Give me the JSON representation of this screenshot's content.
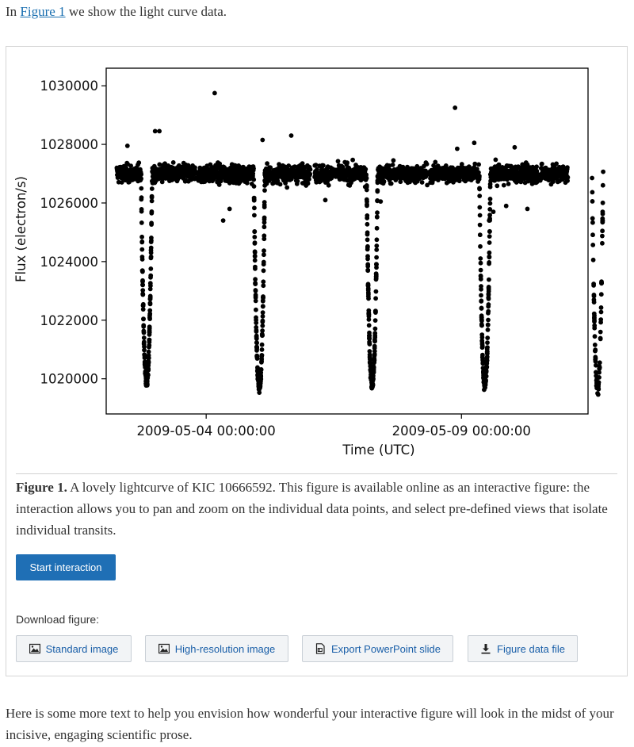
{
  "intro": {
    "prefix": "In",
    "link_text": "Figure 1",
    "suffix": "we show the light curve data."
  },
  "figure": {
    "caption_label": "Figure 1.",
    "caption_text": "A lovely lightcurve of KIC 10666592. This figure is available online as an interactive figure: the interaction allows you to pan and zoom on the individual data points, and select pre-defined views that isolate individual transits.",
    "interaction_button": "Start interaction",
    "download_label": "Download figure:",
    "downloads": [
      {
        "label": "Standard image",
        "icon": "image-icon"
      },
      {
        "label": "High-resolution image",
        "icon": "image-icon"
      },
      {
        "label": "Export PowerPoint slide",
        "icon": "powerpoint-icon"
      },
      {
        "label": "Figure data file",
        "icon": "download-icon"
      }
    ]
  },
  "chart_data": {
    "type": "scatter",
    "title": "",
    "xlabel": "Time (UTC)",
    "ylabel": "Flux (electron/s)",
    "xlim": [
      "2009-05-02 01:00:00",
      "2009-05-11 11:30:00"
    ],
    "ylim": [
      1018800,
      1030600
    ],
    "x_ticks": [
      "2009-05-04 00:00:00",
      "2009-05-09 00:00:00"
    ],
    "y_ticks": [
      1020000,
      1022000,
      1024000,
      1026000,
      1028000,
      1030000
    ],
    "grid": false,
    "marker_color": "#000000",
    "baseline_flux": 1027000,
    "transit_min_flux": 1019700,
    "data_segments": [
      {
        "start": "2009-05-02 06:00:00",
        "end": "2009-05-03 19:00:00"
      },
      {
        "start": "2009-05-03 20:00:00",
        "end": "2009-05-06 01:00:00"
      },
      {
        "start": "2009-05-06 03:00:00",
        "end": "2009-05-08 08:00:00"
      },
      {
        "start": "2009-05-08 09:00:00",
        "end": "2009-05-10 12:00:00"
      },
      {
        "start": "2009-05-10 13:00:00",
        "end": "2009-05-11 02:00:00"
      }
    ],
    "transit_dips": [
      {
        "time": "2009-05-02 20:00:00",
        "min_flux": 1019950
      },
      {
        "time": "2009-05-05 01:00:00",
        "min_flux": 1019700
      },
      {
        "time": "2009-05-07 06:00:00",
        "min_flux": 1019800
      },
      {
        "time": "2009-05-09 11:00:00",
        "min_flux": 1019850
      },
      {
        "time": "2009-05-11 16:00:00",
        "min_flux": 1019700
      }
    ],
    "outliers": [
      {
        "time": "2009-05-04 04:00:00",
        "flux": 1029750
      },
      {
        "time": "2009-05-08 21:00:00",
        "flux": 1029250
      },
      {
        "time": "2009-05-03 00:00:00",
        "flux": 1028450
      },
      {
        "time": "2009-05-03 02:00:00",
        "flux": 1028450
      },
      {
        "time": "2009-05-05 02:30:00",
        "flux": 1028150
      },
      {
        "time": "2009-05-05 16:00:00",
        "flux": 1028300
      },
      {
        "time": "2009-05-09 06:00:00",
        "flux": 1028050
      },
      {
        "time": "2009-05-02 11:00:00",
        "flux": 1027950
      },
      {
        "time": "2009-05-08 22:00:00",
        "flux": 1027850
      },
      {
        "time": "2009-05-10 01:00:00",
        "flux": 1027900
      },
      {
        "time": "2009-05-04 08:00:00",
        "flux": 1025400
      },
      {
        "time": "2009-05-04 11:00:00",
        "flux": 1025800
      },
      {
        "time": "2009-05-09 13:00:00",
        "flux": 1025400
      },
      {
        "time": "2009-05-09 15:00:00",
        "flux": 1025700
      },
      {
        "time": "2009-05-06 08:00:00",
        "flux": 1026100
      },
      {
        "time": "2009-05-07 10:00:00",
        "flux": 1026050
      },
      {
        "time": "2009-05-09 21:00:00",
        "flux": 1025900
      },
      {
        "time": "2009-05-10 07:00:00",
        "flux": 1025800
      }
    ]
  },
  "outro": {
    "text": "Here is some more text to help you envision how wonderful your interactive figure will look in the midst of your incisive, engaging scientific prose."
  }
}
